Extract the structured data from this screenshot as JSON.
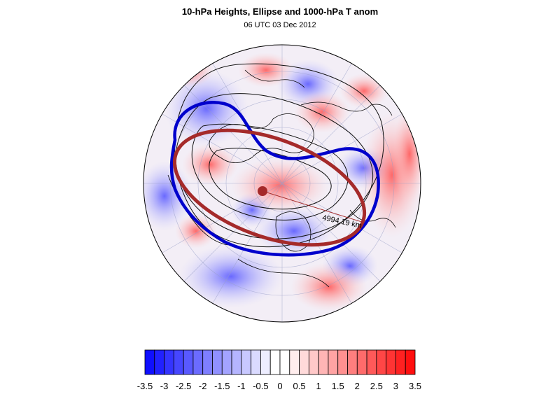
{
  "title": "10-hPa Heights, Ellipse and 1000-hPa T anom",
  "subtitle": "06 UTC 03 Dec 2012",
  "contour_label": "4994.19 km",
  "colors": {
    "cold_max": "#1010ff",
    "warm_max": "#ff1010",
    "vortex_edge": "#0000cc",
    "ellipse": "#a52a2a"
  },
  "colorbar": {
    "levels": [
      -3.5,
      -3.25,
      -3,
      -2.75,
      -2.5,
      -2.25,
      -2,
      -1.75,
      -1.5,
      -1.25,
      -1,
      -0.75,
      -0.5,
      -0.25,
      0,
      0.25,
      0.5,
      0.75,
      1,
      1.25,
      1.5,
      1.75,
      2,
      2.25,
      2.5,
      2.75,
      3,
      3.25,
      3.5
    ],
    "labels": [
      "-3.5",
      "-3",
      "-2.5",
      "-2",
      "-1.5",
      "-1",
      "-0.5",
      "0",
      "0.5",
      "1",
      "1.5",
      "2",
      "2.5",
      "3",
      "3.5"
    ]
  }
}
